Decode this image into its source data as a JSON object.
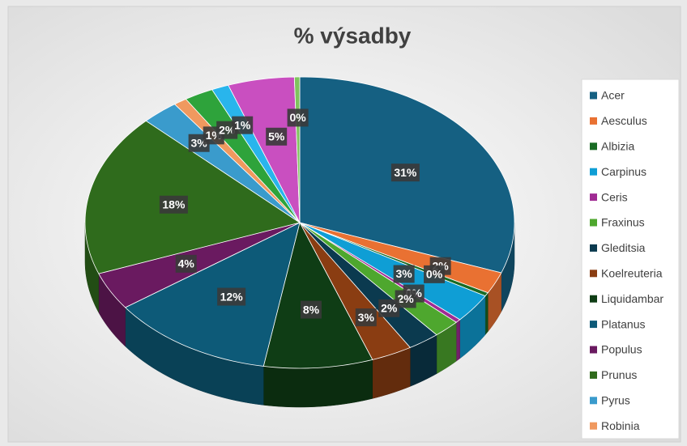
{
  "chart_data": {
    "type": "pie3d",
    "title": "% výsadby",
    "categories": [
      "Acer",
      "Aesculus",
      "Albizia",
      "Carpinus",
      "Ceris",
      "Fraxinus",
      "Gleditsia",
      "Koelreuteria",
      "Liquidambar",
      "Platanus",
      "Populus",
      "Prunus",
      "Pyrus",
      "Robinia",
      null,
      null,
      null,
      null
    ],
    "values": [
      30.6,
      2.4,
      0.4,
      3.2,
      0.4,
      2,
      2.4,
      3.1,
      8.2,
      12.4,
      4.2,
      18,
      2.8,
      1,
      2.2,
      1.3,
      5,
      0.4
    ],
    "value_labels": [
      "31%",
      "2%",
      "0%",
      "3%",
      "0%",
      "2%",
      "2%",
      "3%",
      "8%",
      "12%",
      "4%",
      "18%",
      "3%",
      "1%",
      "2%",
      "1%",
      "5%",
      "0%"
    ],
    "colors": [
      "#156082",
      "#e97132",
      "#196b24",
      "#0f9ed5",
      "#a02b93",
      "#4ea72e",
      "#0b3a4f",
      "#8a3d12",
      "#0f3d15",
      "#0d5a78",
      "#6a1a60",
      "#2f6b1c",
      "#3a9bcc",
      "#f0995f",
      "#2ea33b",
      "#29b5ec",
      "#c94fc0",
      "#7fc45e"
    ],
    "legend": "right"
  }
}
